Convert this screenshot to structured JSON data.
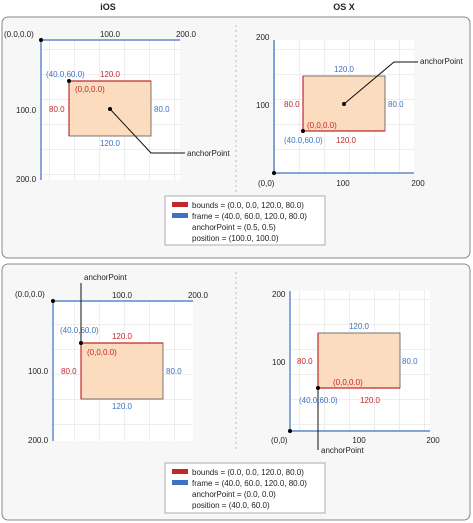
{
  "headers": {
    "ios": "iOS",
    "osx": "OS X"
  },
  "colors": {
    "bounds": "#c0282a",
    "frame": "#3d72c4",
    "layer_fill": "#fcdcbf",
    "grid": "#d4d4d4",
    "panel_bg": "#f7f7f7",
    "panel_border": "#888888"
  },
  "panels": [
    {
      "ios": {
        "origin_label": "(0.0,0.0)",
        "x_ticks": [
          "100.0",
          "200.0"
        ],
        "y_ticks": [
          "100.0",
          "200.0"
        ],
        "frame_origin": "(40.0,60.0)",
        "bounds_origin": "(0,0,0.0)",
        "width_top": "120.0",
        "width_bottom": "120.0",
        "height_left": "80.0",
        "height_right": "80.0",
        "anchor_label": "anchorPoint"
      },
      "osx": {
        "origin_label": "(0,0)",
        "x_ticks": [
          "100",
          "200"
        ],
        "y_ticks": [
          "100",
          "200"
        ],
        "frame_origin": "(40.0,60.0)",
        "bounds_origin": "(0,0,0.0)",
        "width_top": "120.0",
        "width_bottom": "120.0",
        "height_left": "80.0",
        "height_right": "80.0",
        "anchor_label": "anchorPoint"
      },
      "legend": {
        "bounds": "bounds = (0.0, 0.0, 120.0, 80.0)",
        "frame": "frame = (40.0, 60.0, 120.0, 80.0)",
        "anchor": "anchorPoint = (0.5, 0.5)",
        "position": "position = (100.0, 100.0)"
      }
    },
    {
      "ios": {
        "origin_label": "(0.0,0.0)",
        "x_ticks": [
          "100.0",
          "200.0"
        ],
        "y_ticks": [
          "100.0",
          "200.0"
        ],
        "frame_origin": "(40.0,60.0)",
        "bounds_origin": "(0,0,0.0)",
        "width_top": "120.0",
        "width_bottom": "120.0",
        "height_left": "80.0",
        "height_right": "80.0",
        "anchor_label": "anchorPoint"
      },
      "osx": {
        "origin_label": "(0,0)",
        "x_ticks": [
          "100",
          "200"
        ],
        "y_ticks": [
          "100",
          "200"
        ],
        "frame_origin": "(40.0,60.0)",
        "bounds_origin": "(0,0,0.0)",
        "width_top": "120.0",
        "width_bottom": "120.0",
        "height_left": "80.0",
        "height_right": "80.0",
        "anchor_label": "anchorPoint"
      },
      "legend": {
        "bounds": "bounds = (0.0, 0.0, 120.0, 80.0)",
        "frame": "frame = (40.0, 60.0, 120.0, 80.0)",
        "anchor": "anchorPoint = (0.0, 0.0)",
        "position": "position = (40.0, 60.0)"
      }
    }
  ]
}
